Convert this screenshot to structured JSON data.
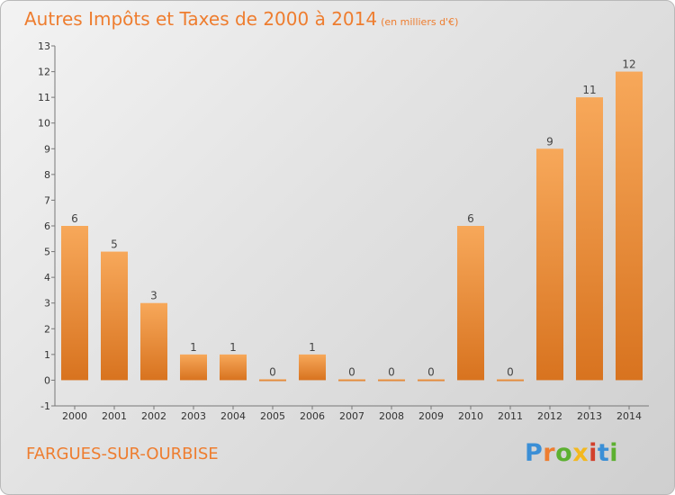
{
  "header": {
    "title": "Autres Impôts et Taxes de 2000 à 2014",
    "unit": "(en milliers d'€)"
  },
  "footer": {
    "commune": "FARGUES-SUR-OURBISE",
    "brand_letters": [
      "P",
      "r",
      "o",
      "x",
      "i",
      "t",
      "i"
    ],
    "brand_colors": [
      "#3b8fd6",
      "#ee7d2f",
      "#5cb030",
      "#f3b81e",
      "#d2402b",
      "#3b8fd6",
      "#5cb030"
    ]
  },
  "colors": {
    "accent": "#ee7d2f",
    "bar_light": "#f7a85a",
    "bar_dark": "#d8731f"
  },
  "chart_data": {
    "type": "bar",
    "categories": [
      "2000",
      "2001",
      "2002",
      "2003",
      "2004",
      "2005",
      "2006",
      "2007",
      "2008",
      "2009",
      "2010",
      "2011",
      "2012",
      "2013",
      "2014"
    ],
    "values": [
      6,
      5,
      3,
      1,
      1,
      0,
      1,
      0,
      0,
      0,
      6,
      0,
      9,
      11,
      12
    ],
    "title": "Autres Impôts et Taxes de 2000 à 2014",
    "ylabel": "",
    "xlabel": "",
    "ylim": [
      -1,
      13
    ],
    "yticks": [
      -1,
      0,
      1,
      2,
      3,
      4,
      5,
      6,
      7,
      8,
      9,
      10,
      11,
      12,
      13
    ],
    "grid": false
  }
}
